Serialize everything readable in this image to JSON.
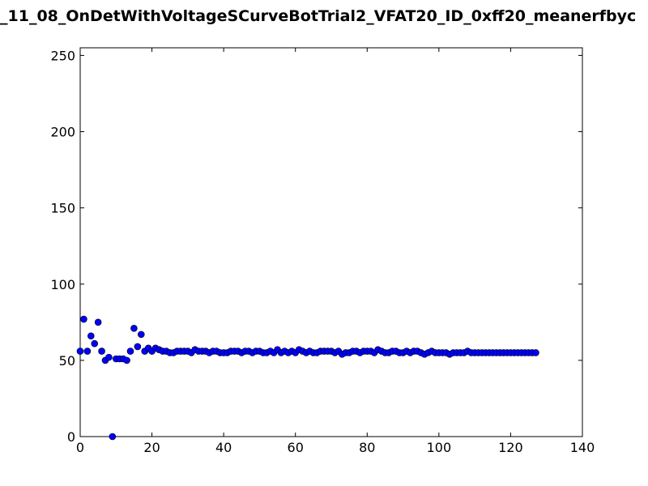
{
  "chart_data": {
    "type": "scatter",
    "title": "_11_08_OnDetWithVoltageSCurveBotTrial2_VFAT20_ID_0xff20_meanerfbyc",
    "x": [
      0,
      1,
      2,
      3,
      4,
      5,
      6,
      7,
      8,
      9,
      10,
      11,
      12,
      13,
      14,
      15,
      16,
      17,
      18,
      19,
      20,
      21,
      22,
      23,
      24,
      25,
      26,
      27,
      28,
      29,
      30,
      31,
      32,
      33,
      34,
      35,
      36,
      37,
      38,
      39,
      40,
      41,
      42,
      43,
      44,
      45,
      46,
      47,
      48,
      49,
      50,
      51,
      52,
      53,
      54,
      55,
      56,
      57,
      58,
      59,
      60,
      61,
      62,
      63,
      64,
      65,
      66,
      67,
      68,
      69,
      70,
      71,
      72,
      73,
      74,
      75,
      76,
      77,
      78,
      79,
      80,
      81,
      82,
      83,
      84,
      85,
      86,
      87,
      88,
      89,
      90,
      91,
      92,
      93,
      94,
      95,
      96,
      97,
      98,
      99,
      100,
      101,
      102,
      103,
      104,
      105,
      106,
      107,
      108,
      109,
      110,
      111,
      112,
      113,
      114,
      115,
      116,
      117,
      118,
      119,
      120,
      121,
      122,
      123,
      124,
      125,
      126,
      127
    ],
    "values": [
      56,
      77,
      56,
      66,
      61,
      75,
      56,
      50,
      52,
      0,
      51,
      51,
      51,
      50,
      56,
      71,
      59,
      67,
      56,
      58,
      56,
      58,
      57,
      56,
      56,
      55,
      55,
      56,
      56,
      56,
      56,
      55,
      57,
      56,
      56,
      56,
      55,
      56,
      56,
      55,
      55,
      55,
      56,
      56,
      56,
      55,
      56,
      56,
      55,
      56,
      56,
      55,
      55,
      56,
      55,
      57,
      55,
      56,
      55,
      56,
      55,
      57,
      56,
      55,
      56,
      55,
      55,
      56,
      56,
      56,
      56,
      55,
      56,
      54,
      55,
      55,
      56,
      56,
      55,
      56,
      56,
      56,
      55,
      57,
      56,
      55,
      55,
      56,
      56,
      55,
      55,
      56,
      55,
      56,
      56,
      55,
      54,
      55,
      56,
      55,
      55,
      55,
      55,
      54,
      55,
      55,
      55,
      55,
      56,
      55,
      55,
      55,
      55,
      55,
      55,
      55,
      55,
      55,
      55,
      55,
      55,
      55,
      55,
      55,
      55,
      55,
      55,
      55
    ],
    "color": "#0000ff",
    "xlim": [
      0,
      140
    ],
    "xticks": [
      0,
      20,
      40,
      60,
      80,
      100,
      120,
      140
    ],
    "ylim": [
      0,
      255
    ],
    "yticks": [
      0,
      50,
      100,
      150,
      200,
      250
    ]
  }
}
